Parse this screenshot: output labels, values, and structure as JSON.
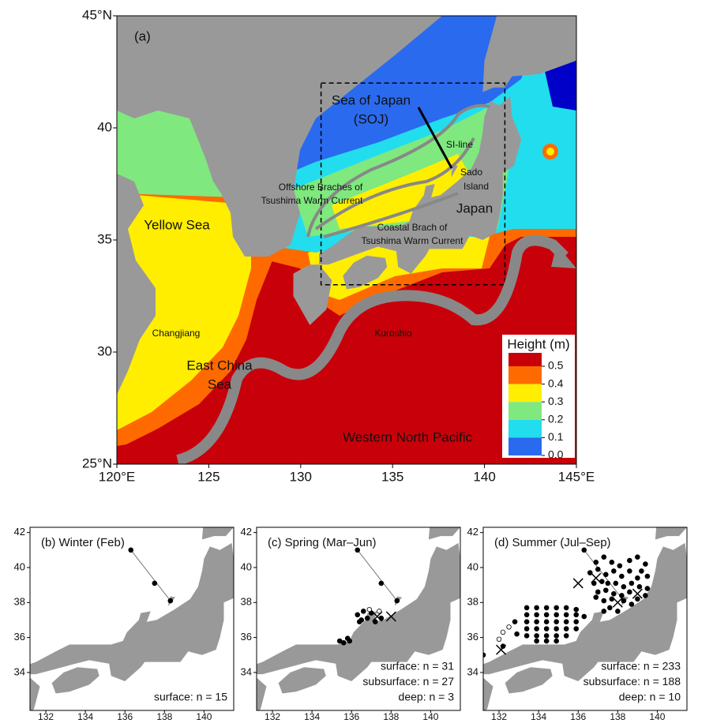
{
  "map": {
    "panel_label": "(a)",
    "lon_range": [
      120,
      145
    ],
    "lat_range": [
      25,
      45
    ],
    "lon_ticks": [
      {
        "value": 120,
        "label": "120°E"
      },
      125,
      130,
      135,
      140,
      {
        "value": 145,
        "label": "145°E"
      }
    ],
    "lat_ticks": [
      {
        "value": 25,
        "label": "25°N"
      },
      30,
      35,
      40,
      {
        "value": 45,
        "label": "45°N"
      }
    ],
    "labels": [
      "Sea of Japan",
      "(SOJ)",
      "SI-line",
      "Sado",
      "Island",
      "Offshore Braches of",
      "Tsushima Warm Current",
      "Japan",
      "Yellow Sea",
      "Coastal Brach of",
      "Tsushima Warm Current",
      "Changjiang",
      "Kuroshio",
      "East China",
      "Sea",
      "Western North Pacific"
    ],
    "legend": {
      "title": "Height (m)",
      "colors": [
        "#c8000a",
        "#ff6a00",
        "#ffee00",
        "#7fe87f",
        "#22ddee",
        "#2a6aee",
        "#0000c8"
      ],
      "ticks": [
        0.5,
        0.4,
        0.3,
        0.2,
        0.1,
        {
          "value": 0,
          "label": "0.0"
        }
      ]
    }
  },
  "panels": [
    {
      "title": "(b) Winter (Feb)",
      "counts": [
        "surface: n = 15"
      ],
      "lon_range": [
        131.2,
        141.5
      ],
      "lat_range": [
        31.83,
        42.3
      ],
      "lon_ticks": [
        132,
        134,
        136,
        138,
        140
      ],
      "lat_ticks": [
        34,
        36,
        38,
        40,
        42
      ],
      "filled": [
        [
          136.3,
          41.0
        ],
        [
          137.5,
          39.1
        ],
        [
          138.3,
          38.1
        ]
      ],
      "open": [],
      "cross": []
    },
    {
      "title": "(c) Spring (Mar–Jun)",
      "counts": [
        "surface: n = 31",
        "subsurface: n = 27",
        "deep: n = 3"
      ],
      "lon_range": [
        131.2,
        141.5
      ],
      "lat_range": [
        31.83,
        42.3
      ],
      "lon_ticks": [
        132,
        134,
        136,
        138,
        140
      ],
      "lat_ticks": [
        34,
        36,
        38,
        40,
        42
      ],
      "filled": [
        [
          136.3,
          41.0
        ],
        [
          137.5,
          39.1
        ],
        [
          138.3,
          38.1
        ],
        [
          136.3,
          37.3
        ],
        [
          136.5,
          37.0
        ],
        [
          136.8,
          37.1
        ],
        [
          137.0,
          37.4
        ],
        [
          136.4,
          36.9
        ],
        [
          136.6,
          37.5
        ],
        [
          137.5,
          37.1
        ],
        [
          137.2,
          36.9
        ],
        [
          135.4,
          35.8
        ],
        [
          135.6,
          35.7
        ],
        [
          135.9,
          35.8
        ],
        [
          135.8,
          35.95
        ]
      ],
      "open": [
        [
          136.9,
          37.6
        ],
        [
          137.4,
          37.5
        ]
      ],
      "cross": [
        [
          137.3,
          37.2
        ],
        [
          138.0,
          37.2
        ]
      ]
    },
    {
      "title": "(d) Summer (Jul–Sep)",
      "counts": [
        "surface: n = 233",
        "subsurface: n = 188",
        "deep: n = 10"
      ],
      "lon_range": [
        131.2,
        141.5
      ],
      "lat_range": [
        31.83,
        42.3
      ],
      "lon_ticks": [
        132,
        134,
        136,
        138,
        140
      ],
      "lat_ticks": [
        34,
        36,
        38,
        40,
        42
      ],
      "filled": [
        [
          136.3,
          41.0
        ],
        [
          137.5,
          39.1
        ],
        [
          138.3,
          38.1
        ],
        [
          133.4,
          37.7
        ],
        [
          133.9,
          37.7
        ],
        [
          134.4,
          37.7
        ],
        [
          134.9,
          37.7
        ],
        [
          135.4,
          37.7
        ],
        [
          135.9,
          37.6
        ],
        [
          133.4,
          37.3
        ],
        [
          133.9,
          37.3
        ],
        [
          134.4,
          37.3
        ],
        [
          134.9,
          37.3
        ],
        [
          135.4,
          37.3
        ],
        [
          135.9,
          37.3
        ],
        [
          136.3,
          37.2
        ],
        [
          133.4,
          36.9
        ],
        [
          133.9,
          36.9
        ],
        [
          134.4,
          36.9
        ],
        [
          134.9,
          36.9
        ],
        [
          135.4,
          36.9
        ],
        [
          135.9,
          36.9
        ],
        [
          133.4,
          36.5
        ],
        [
          133.9,
          36.5
        ],
        [
          134.4,
          36.5
        ],
        [
          134.9,
          36.5
        ],
        [
          135.4,
          36.5
        ],
        [
          135.9,
          36.5
        ],
        [
          133.4,
          36.1
        ],
        [
          133.9,
          36.1
        ],
        [
          134.4,
          36.1
        ],
        [
          134.9,
          36.1
        ],
        [
          135.4,
          36.1
        ],
        [
          133.9,
          35.8
        ],
        [
          134.4,
          35.8
        ],
        [
          134.9,
          35.8
        ],
        [
          136.9,
          40.3
        ],
        [
          137.3,
          40.6
        ],
        [
          137.7,
          40.3
        ],
        [
          138.1,
          40.1
        ],
        [
          138.6,
          40.4
        ],
        [
          139.0,
          40.6
        ],
        [
          139.4,
          40.2
        ],
        [
          139.2,
          39.8
        ],
        [
          136.6,
          39.7
        ],
        [
          137.0,
          39.9
        ],
        [
          137.4,
          39.6
        ],
        [
          137.8,
          39.8
        ],
        [
          138.2,
          39.5
        ],
        [
          138.6,
          39.8
        ],
        [
          139.0,
          39.4
        ],
        [
          139.5,
          39.5
        ],
        [
          136.8,
          39.1
        ],
        [
          137.2,
          39.2
        ],
        [
          137.9,
          39.1
        ],
        [
          138.3,
          38.9
        ],
        [
          138.7,
          39.1
        ],
        [
          139.1,
          38.9
        ],
        [
          139.5,
          38.8
        ],
        [
          137.0,
          38.6
        ],
        [
          137.4,
          38.7
        ],
        [
          137.8,
          38.5
        ],
        [
          138.2,
          38.4
        ],
        [
          138.6,
          38.6
        ],
        [
          139.0,
          38.2
        ],
        [
          139.4,
          38.4
        ],
        [
          137.3,
          38.1
        ],
        [
          137.7,
          38.2
        ],
        [
          138.7,
          37.9
        ],
        [
          136.9,
          38.3
        ],
        [
          137.6,
          37.7
        ],
        [
          138.0,
          37.5
        ],
        [
          137.3,
          37.5
        ],
        [
          131.2,
          35.0
        ],
        [
          132.2,
          35.5
        ],
        [
          132.8,
          36.9
        ],
        [
          132.9,
          36.2
        ]
      ],
      "open": [
        [
          132.2,
          36.3
        ],
        [
          132.5,
          36.6
        ],
        [
          132.0,
          35.9
        ]
      ],
      "cross": [
        [
          132.1,
          35.3
        ],
        [
          136.0,
          39.1
        ],
        [
          136.9,
          39.4
        ],
        [
          138.0,
          38.0
        ],
        [
          139.0,
          38.5
        ]
      ]
    }
  ]
}
